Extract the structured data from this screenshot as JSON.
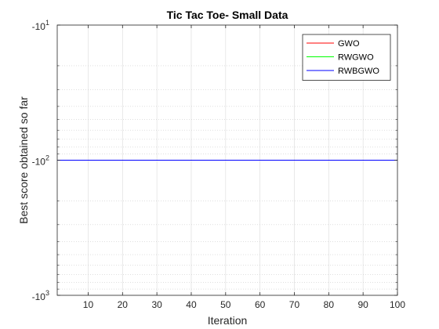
{
  "chart_data": {
    "type": "line",
    "title": "Tic Tac Toe- Small Data",
    "xlabel": "Iteration",
    "ylabel": "Best score obtained so far",
    "xlim": [
      1,
      100
    ],
    "ylim": [
      -1000,
      -10
    ],
    "y_scale": "log",
    "y_direction": "increasing downward in magnitude (negative values)",
    "x_ticks": [
      10,
      20,
      30,
      40,
      50,
      60,
      70,
      80,
      90,
      100
    ],
    "y_ticks": [
      {
        "value": -10,
        "base": "-10",
        "exponent": "1"
      },
      {
        "value": -100,
        "base": "-10",
        "exponent": "2"
      },
      {
        "value": -1000,
        "base": "-10",
        "exponent": "3"
      }
    ],
    "grid": true,
    "legend_position": "top-right",
    "x": [
      1,
      100
    ],
    "series": [
      {
        "name": "GWO",
        "color": "#ff0000",
        "values": [
          -100,
          -100
        ]
      },
      {
        "name": "RWGWO",
        "color": "#00ff00",
        "values": [
          -100,
          -100
        ]
      },
      {
        "name": "RWBGWO",
        "color": "#0000ff",
        "values": [
          -100,
          -100
        ]
      }
    ]
  }
}
